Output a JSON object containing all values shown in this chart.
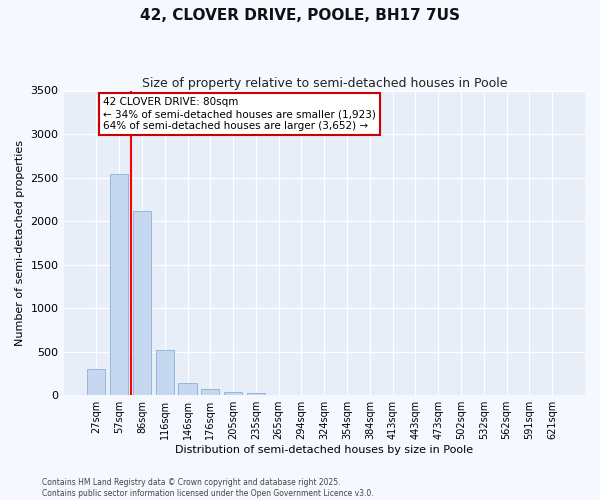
{
  "title": "42, CLOVER DRIVE, POOLE, BH17 7US",
  "subtitle": "Size of property relative to semi-detached houses in Poole",
  "xlabel": "Distribution of semi-detached houses by size in Poole",
  "ylabel": "Number of semi-detached properties",
  "categories": [
    "27sqm",
    "57sqm",
    "86sqm",
    "116sqm",
    "146sqm",
    "176sqm",
    "205sqm",
    "235sqm",
    "265sqm",
    "294sqm",
    "324sqm",
    "354sqm",
    "384sqm",
    "413sqm",
    "443sqm",
    "473sqm",
    "502sqm",
    "532sqm",
    "562sqm",
    "591sqm",
    "621sqm"
  ],
  "values": [
    300,
    2540,
    2120,
    520,
    145,
    70,
    40,
    25,
    0,
    0,
    0,
    0,
    0,
    0,
    0,
    0,
    0,
    0,
    0,
    0,
    0
  ],
  "bar_color": "#c5d8f0",
  "bar_edge_color": "#8ab0d8",
  "red_line_x": 2.0,
  "property_label": "42 CLOVER DRIVE: 80sqm",
  "annotation_line1": "← 34% of semi-detached houses are smaller (1,923)",
  "annotation_line2": "64% of semi-detached houses are larger (3,652) →",
  "annotation_box_facecolor": "#ffffff",
  "annotation_box_edgecolor": "#cc0000",
  "ylim": [
    0,
    3500
  ],
  "fig_facecolor": "#f5f8fe",
  "ax_facecolor": "#e8eef8",
  "footer_line1": "Contains HM Land Registry data © Crown copyright and database right 2025.",
  "footer_line2": "Contains public sector information licensed under the Open Government Licence v3.0.",
  "title_fontsize": 11,
  "subtitle_fontsize": 9,
  "ylabel_fontsize": 8,
  "xlabel_fontsize": 8,
  "tick_fontsize": 7,
  "annot_fontsize": 7.5,
  "footer_fontsize": 5.5
}
